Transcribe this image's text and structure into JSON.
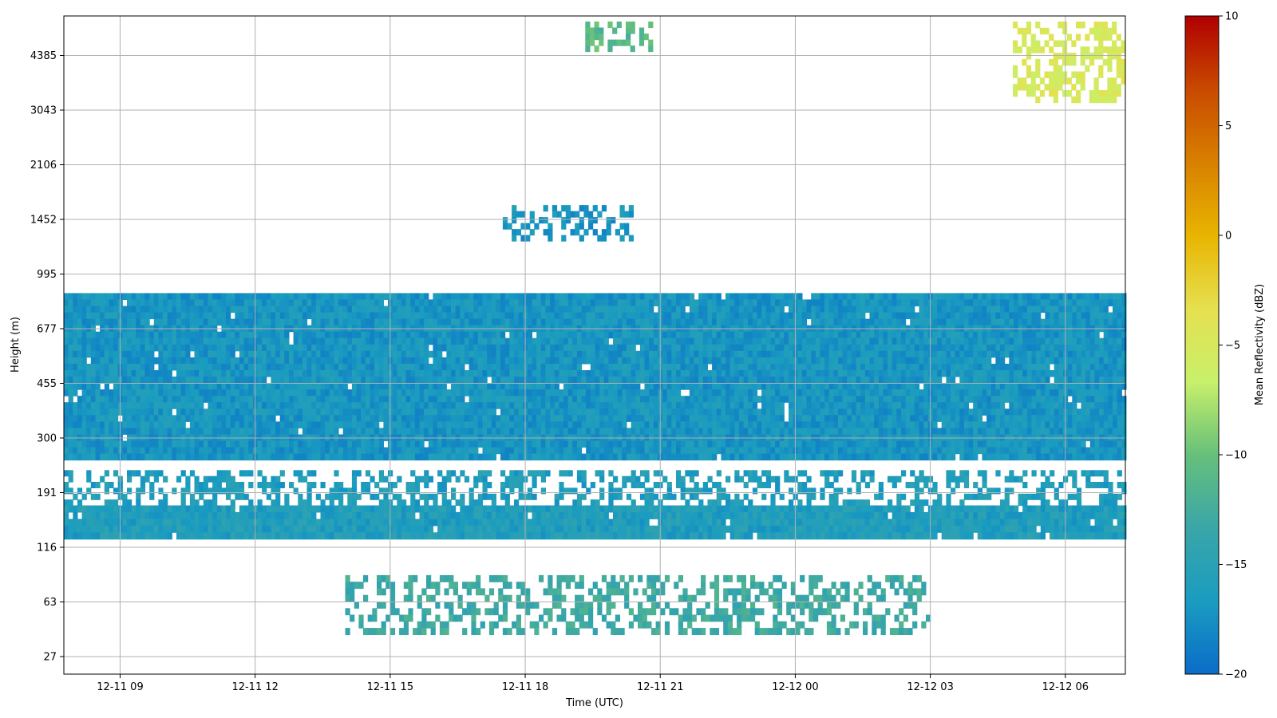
{
  "chart_data": {
    "type": "heatmap",
    "title": "",
    "xlabel": "Time (UTC)",
    "ylabel": "Height (m)",
    "x_ticks": [
      "12-11 09",
      "12-11 12",
      "12-11 15",
      "12-11 18",
      "12-11 21",
      "12-12 00",
      "12-12 03",
      "12-12 06"
    ],
    "x_range": [
      "12-11 07:45",
      "12-12 07:20"
    ],
    "y_ticks": [
      "27",
      "63",
      "116",
      "191",
      "300",
      "455",
      "677",
      "995",
      "1452",
      "2106",
      "3043",
      "4385"
    ],
    "y_scale": "stretched (non-linear) height axis; tick labels evenly spaced",
    "colorbar": {
      "label": "Mean Reflectivity (dBZ)",
      "min": -20,
      "max": 10,
      "ticks": [
        "10",
        "5",
        "0",
        "−5",
        "−10",
        "−15",
        "−20"
      ],
      "colormap": [
        "#0a6cc8",
        "#1a9cc0",
        "#3aa6a8",
        "#66c07a",
        "#c8f06a",
        "#e6e050",
        "#e8b400",
        "#d88000",
        "#c84a00",
        "#b00000"
      ]
    },
    "grid": true,
    "layers": [
      {
        "name": "Main boundary layer band",
        "height_m": [
          250,
          870
        ],
        "time": [
          "12-11 07:45",
          "12-12 07:20"
        ],
        "dBZ": -17
      },
      {
        "name": "Lower band",
        "height_m": [
          125,
          170
        ],
        "time": [
          "12-11 07:45",
          "12-12 07:20"
        ],
        "dBZ": -16
      },
      {
        "name": "Scattered echoes",
        "height_m": [
          170,
          230
        ],
        "time": [
          "12-11 07:45",
          "12-12 07:20"
        ],
        "dBZ": -16
      },
      {
        "name": "Near-surface echoes",
        "height_m": [
          38,
          85
        ],
        "time": [
          "12-11 14:00",
          "12-12 03:00"
        ],
        "dBZ": -13
      },
      {
        "name": "Mid-level cloud",
        "height_m": [
          1250,
          1600
        ],
        "time": [
          "12-11 17:30",
          "12-11 20:30"
        ],
        "dBZ": -17
      },
      {
        "name": "High cloud A",
        "height_m": [
          4500,
          5500
        ],
        "time": [
          "12-11 19:20",
          "12-11 20:45"
        ],
        "dBZ": -11
      },
      {
        "name": "High cloud B",
        "height_m": [
          3200,
          5500
        ],
        "time": [
          "12-12 04:50",
          "12-12 07:20"
        ],
        "dBZ": -5
      }
    ]
  }
}
